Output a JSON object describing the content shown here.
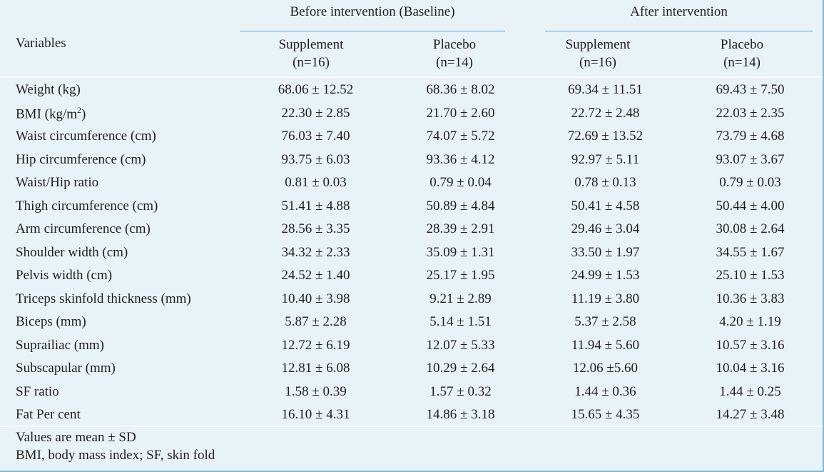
{
  "header": {
    "variables_label": "Variables",
    "before_group": "Before intervention (Baseline)",
    "after_group": "After intervention",
    "columns": [
      {
        "name": "Supplement",
        "n": "(n=16)"
      },
      {
        "name": "Placebo",
        "n": "(n=14)"
      },
      {
        "name": "Supplement",
        "n": "(n=16)"
      },
      {
        "name": "Placebo",
        "n": "(n=14)"
      }
    ]
  },
  "rows": [
    {
      "label": "Weight (kg)",
      "values": [
        "68.06 ± 12.52",
        "68.36 ± 8.02",
        "69.34 ± 11.51",
        "69.43 ± 7.50"
      ]
    },
    {
      "label": "BMI (kg/m",
      "label_sup": "2",
      "label_tail": ")",
      "values": [
        "22.30 ± 2.85",
        "21.70 ± 2.60",
        "22.72 ± 2.48",
        "22.03 ± 2.35"
      ]
    },
    {
      "label": "Waist circumference (cm)",
      "values": [
        "76.03 ± 7.40",
        "74.07 ± 5.72",
        "72.69 ± 13.52",
        "73.79 ± 4.68"
      ]
    },
    {
      "label": "Hip circumference (cm)",
      "values": [
        "93.75 ± 6.03",
        "93.36 ± 4.12",
        "92.97 ± 5.11",
        "93.07 ± 3.67"
      ]
    },
    {
      "label": "Waist/Hip ratio",
      "values": [
        "0.81 ± 0.03",
        "0.79 ± 0.04",
        "0.78 ± 0.13",
        "0.79 ± 0.03"
      ]
    },
    {
      "label": "Thigh circumference (cm)",
      "values": [
        "51.41 ± 4.88",
        "50.89 ± 4.84",
        "50.41 ± 4.58",
        "50.44 ± 4.00"
      ]
    },
    {
      "label": "Arm circumference (cm)",
      "values": [
        "28.56 ± 3.35",
        "28.39 ± 2.91",
        "29.46 ± 3.04",
        "30.08 ± 2.64"
      ]
    },
    {
      "label": "Shoulder width (cm)",
      "values": [
        "34.32 ± 2.33",
        "35.09 ± 1.31",
        "33.50 ± 1.97",
        "34.55 ± 1.67"
      ]
    },
    {
      "label": "Pelvis width (cm)",
      "values": [
        "24.52 ± 1.40",
        "25.17 ± 1.95",
        "24.99 ± 1.53",
        "25.10 ± 1.53"
      ]
    },
    {
      "label": "Triceps skinfold thickness (mm)",
      "values": [
        "10.40 ± 3.98",
        "9.21 ± 2.89",
        "11.19 ± 3.80",
        "10.36 ± 3.83"
      ]
    },
    {
      "label": "Biceps (mm)",
      "values": [
        "5.87 ± 2.28",
        "5.14 ± 1.51",
        "5.37 ± 2.58",
        "4.20 ± 1.19"
      ]
    },
    {
      "label": "Suprailiac (mm)",
      "values": [
        "12.72 ± 6.19",
        "12.07 ± 5.33",
        "11.94 ± 5.60",
        "10.57 ± 3.16"
      ]
    },
    {
      "label": "Subscapular (mm)",
      "values": [
        "12.81 ± 6.08",
        "10.29 ± 2.64",
        "12.06 ±5.60",
        "10.04 ± 3.16"
      ]
    },
    {
      "label": "SF ratio",
      "values": [
        "1.58 ± 0.39",
        "1.57 ± 0.32",
        "1.44 ± 0.36",
        "1.44 ± 0.25"
      ]
    },
    {
      "label": "Fat Per cent",
      "values": [
        "16.10 ± 4.31",
        "14.86 ± 3.18",
        "15.65 ± 4.35",
        "14.27 ± 3.48"
      ]
    }
  ],
  "footer": {
    "note1": "Values are mean ± SD",
    "note2": "BMI, body mass index; SF, skin fold"
  }
}
